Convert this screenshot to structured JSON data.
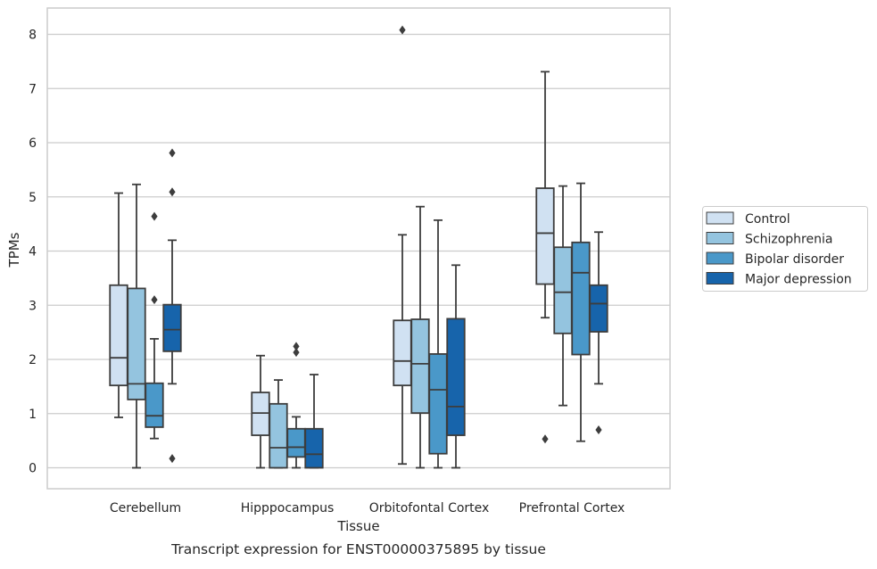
{
  "caption": "Transcript expression for ENST00000375895 by tissue",
  "chart_data": {
    "type": "boxplot",
    "xlabel": "Tissue",
    "ylabel": "TPMs",
    "ylim": [
      -0.4,
      8.5
    ],
    "yticks": [
      0,
      1,
      2,
      3,
      4,
      5,
      6,
      7,
      8
    ],
    "grid": "horizontal",
    "legend_placement": "right",
    "categories": [
      "Cerebellum",
      "Hipppocampus",
      "Orbitofontal Cortex",
      "Prefrontal Cortex"
    ],
    "series": [
      {
        "name": "Control",
        "color": "#d0e1f2",
        "boxes": [
          {
            "whislo": 0.93,
            "q1": 1.52,
            "med": 2.03,
            "q3": 3.37,
            "whishi": 5.07,
            "fliers": []
          },
          {
            "whislo": 0.0,
            "q1": 0.6,
            "med": 1.01,
            "q3": 1.39,
            "whishi": 2.07,
            "fliers": []
          },
          {
            "whislo": 0.07,
            "q1": 1.52,
            "med": 1.97,
            "q3": 2.72,
            "whishi": 4.3,
            "fliers": [
              8.08
            ]
          },
          {
            "whislo": 2.77,
            "q1": 3.39,
            "med": 4.33,
            "q3": 5.16,
            "whishi": 7.31,
            "fliers": [
              0.53
            ]
          }
        ]
      },
      {
        "name": "Schizophrenia",
        "color": "#94c4df",
        "boxes": [
          {
            "whislo": 0.0,
            "q1": 1.26,
            "med": 1.55,
            "q3": 3.31,
            "whishi": 5.23,
            "fliers": []
          },
          {
            "whislo": 0.0,
            "q1": 0.0,
            "med": 0.37,
            "q3": 1.18,
            "whishi": 1.62,
            "fliers": []
          },
          {
            "whislo": 0.0,
            "q1": 1.01,
            "med": 1.92,
            "q3": 2.74,
            "whishi": 4.82,
            "fliers": []
          },
          {
            "whislo": 1.15,
            "q1": 2.48,
            "med": 3.24,
            "q3": 4.07,
            "whishi": 5.2,
            "fliers": []
          }
        ]
      },
      {
        "name": "Bipolar disorder",
        "color": "#4a98c9",
        "boxes": [
          {
            "whislo": 0.54,
            "q1": 0.75,
            "med": 0.96,
            "q3": 1.56,
            "whishi": 2.38,
            "fliers": [
              3.1,
              4.64
            ]
          },
          {
            "whislo": 0.0,
            "q1": 0.2,
            "med": 0.38,
            "q3": 0.72,
            "whishi": 0.94,
            "fliers": [
              2.13,
              2.24
            ]
          },
          {
            "whislo": 0.0,
            "q1": 0.26,
            "med": 1.44,
            "q3": 2.1,
            "whishi": 4.57,
            "fliers": []
          },
          {
            "whislo": 0.49,
            "q1": 2.09,
            "med": 3.6,
            "q3": 4.16,
            "whishi": 5.25,
            "fliers": []
          }
        ]
      },
      {
        "name": "Major depression",
        "color": "#1764ab",
        "boxes": [
          {
            "whislo": 1.55,
            "q1": 2.15,
            "med": 2.55,
            "q3": 3.01,
            "whishi": 4.2,
            "fliers": [
              0.17,
              5.09,
              5.81
            ]
          },
          {
            "whislo": 0.0,
            "q1": 0.0,
            "med": 0.25,
            "q3": 0.72,
            "whishi": 1.72,
            "fliers": []
          },
          {
            "whislo": 0.0,
            "q1": 0.6,
            "med": 1.13,
            "q3": 2.75,
            "whishi": 3.74,
            "fliers": []
          },
          {
            "whislo": 1.55,
            "q1": 2.51,
            "med": 3.03,
            "q3": 3.37,
            "whishi": 4.35,
            "fliers": [
              0.7
            ]
          }
        ]
      }
    ]
  }
}
